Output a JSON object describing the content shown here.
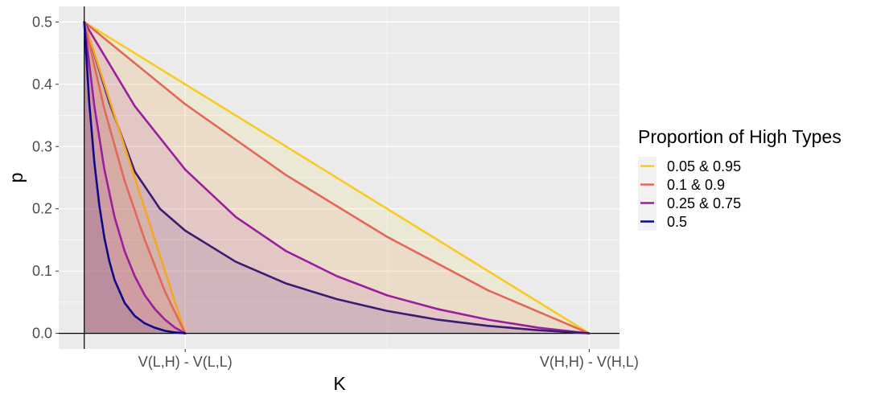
{
  "chart_data": {
    "type": "line",
    "xlabel": "K",
    "ylabel": "p",
    "ylim": [
      -0.025,
      0.525
    ],
    "x_ticks": [
      {
        "value": 0.2,
        "label": "V(L,H) - V(L,L)"
      },
      {
        "value": 1.0,
        "label": "V(H,H) - V(H,L)"
      }
    ],
    "y_ticks": [
      0.0,
      0.1,
      0.2,
      0.3,
      0.4,
      0.5
    ],
    "y_tick_labels": [
      "0.0",
      "0.1",
      "0.2",
      "0.3",
      "0.4",
      "0.5"
    ],
    "grid": true,
    "legend": {
      "title": "Proportion of High Types",
      "position": "right",
      "entries": [
        {
          "label": "0.05 & 0.95",
          "color": "#F9CA22"
        },
        {
          "label": "0.1 & 0.9",
          "color": "#E2685A"
        },
        {
          "label": "0.25 & 0.75",
          "color": "#9A1E9E"
        },
        {
          "label": "0.5",
          "color": "#0D0887"
        }
      ]
    },
    "series": [
      {
        "name": "0.05 & 0.95",
        "color": "#F9CA22",
        "x": [
          0.0,
          1.0
        ],
        "y": [
          0.5,
          0.0
        ]
      },
      {
        "name": "0.1 & 0.9",
        "color": "#E2685A",
        "x": [
          0.0,
          0.2,
          0.4,
          0.6,
          0.8,
          1.0
        ],
        "y": [
          0.5,
          0.368,
          0.254,
          0.155,
          0.069,
          0.0
        ]
      },
      {
        "name": "0.25 & 0.75",
        "color": "#9A1E9E",
        "x": [
          0.0,
          0.1,
          0.2,
          0.3,
          0.4,
          0.5,
          0.6,
          0.7,
          0.8,
          0.9,
          1.0
        ],
        "y": [
          0.5,
          0.365,
          0.263,
          0.187,
          0.132,
          0.092,
          0.061,
          0.039,
          0.022,
          0.009,
          0.0
        ]
      },
      {
        "name": "0.5",
        "color": "#3A1C71",
        "x": [
          0.0,
          0.05,
          0.1,
          0.15,
          0.2,
          0.3,
          0.4,
          0.5,
          0.6,
          0.7,
          0.8,
          0.9,
          1.0
        ],
        "y": [
          0.5,
          0.37,
          0.26,
          0.2,
          0.165,
          0.115,
          0.08,
          0.055,
          0.036,
          0.022,
          0.012,
          0.005,
          0.0
        ]
      },
      {
        "name": "0.05 & 0.95",
        "color": "#F5A623",
        "x": [
          0.0,
          0.2
        ],
        "y": [
          0.5,
          0.0
        ]
      },
      {
        "name": "0.1 & 0.9",
        "color": "#E2685A",
        "x": [
          0.0,
          0.04,
          0.08,
          0.12,
          0.16,
          0.2
        ],
        "y": [
          0.5,
          0.36,
          0.245,
          0.15,
          0.067,
          0.0
        ]
      },
      {
        "name": "0.25 & 0.75",
        "color": "#9A1E9E",
        "x": [
          0.0,
          0.02,
          0.04,
          0.06,
          0.08,
          0.1,
          0.12,
          0.14,
          0.16,
          0.18,
          0.2
        ],
        "y": [
          0.5,
          0.365,
          0.263,
          0.187,
          0.132,
          0.092,
          0.061,
          0.039,
          0.022,
          0.009,
          0.0
        ]
      },
      {
        "name": "0.5",
        "color": "#0D0887",
        "x": [
          0.0,
          0.01,
          0.02,
          0.03,
          0.04,
          0.05,
          0.06,
          0.08,
          0.1,
          0.12,
          0.14,
          0.16,
          0.18,
          0.2
        ],
        "y": [
          0.5,
          0.37,
          0.275,
          0.205,
          0.153,
          0.115,
          0.086,
          0.049,
          0.028,
          0.016,
          0.009,
          0.004,
          0.0015,
          0.0
        ]
      }
    ]
  }
}
